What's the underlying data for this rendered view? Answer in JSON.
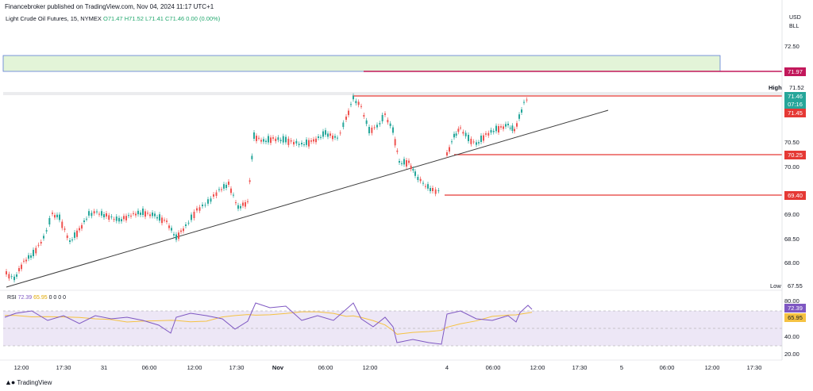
{
  "header": {
    "publisher": "Financebroker published on TradingView.com, Nov 04, 2024 11:17 UTC+1",
    "symbol": "Light Crude Oil Futures, 15, NYMEX",
    "ohlc": {
      "open": "O71.47",
      "high": "H71.52",
      "low": "L71.41",
      "close": "C71.46",
      "change": "0.00 (0.00%)"
    }
  },
  "price_axis": {
    "currency": "USD",
    "unit": "BLL",
    "labels": [
      "72.50",
      "71.52",
      "70.50",
      "70.00",
      "69.00",
      "68.50",
      "68.00",
      "67.55"
    ],
    "high_label": "High",
    "low_label": "Low"
  },
  "price_tags": {
    "resistance": "71.97",
    "current_price": "71.46",
    "countdown": "07:16",
    "level_1": "71.45",
    "level_2": "70.25",
    "level_3": "69.40"
  },
  "rsi": {
    "label": "RSI",
    "value": "72.39",
    "ma": "65.95",
    "zeros": "0 0 0 0",
    "axis_labels": [
      "80.00",
      "40.00",
      "20.00"
    ]
  },
  "time_axis": [
    "12:00",
    "17:30",
    "31",
    "06:00",
    "12:00",
    "17:30",
    "Nov",
    "06:00",
    "12:00",
    "4",
    "06:00",
    "12:00",
    "17:30",
    "5",
    "06:00",
    "12:00",
    "17:30"
  ],
  "footer": {
    "logo": "TradingView"
  },
  "colors": {
    "up": "#26a69a",
    "down": "#ef5350",
    "line": "#e53935",
    "rsi": "#7e57c2",
    "rsi_ma": "#f5c242",
    "zone": "#e3f4d8"
  }
}
